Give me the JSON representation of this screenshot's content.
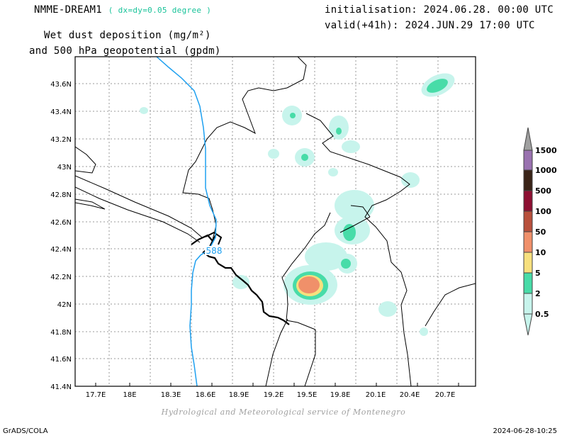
{
  "header": {
    "model": "NMME-DREAM1",
    "resolution": "( dx=dy=0.05 degree )",
    "initialisation": "initialisation: 2024.06.28. 00:00 UTC",
    "valid": "valid(+41h): 2024.JUN.29 17:00 UTC",
    "title_line1": "Wet dust deposition (mg/m²)",
    "title_line2": "and 500 hPa geopotential (gpdm)"
  },
  "map": {
    "lon_labels": [
      "17.7E",
      "18E",
      "18.3E",
      "18.6E",
      "18.9E",
      "19.2E",
      "19.5E",
      "19.8E",
      "20.1E",
      "20.4E",
      "20.7E"
    ],
    "lat_labels": [
      "43.6N",
      "43.4N",
      "43.2N",
      "43N",
      "42.8N",
      "42.6N",
      "42.4N",
      "42.2N",
      "42N",
      "41.8N",
      "41.6N",
      "41.4N"
    ],
    "contour_label": "588",
    "contour_color": "#1ea0f0"
  },
  "legend": {
    "levels": [
      {
        "label": "1500",
        "color": "#a0a0a0"
      },
      {
        "label": "1000",
        "color": "#9a72b0"
      },
      {
        "label": "500",
        "color": "#3a2418"
      },
      {
        "label": "100",
        "color": "#8e0f32"
      },
      {
        "label": "50",
        "color": "#b8503c"
      },
      {
        "label": "10",
        "color": "#f0906a"
      },
      {
        "label": "5",
        "color": "#f7e07e"
      },
      {
        "label": "2",
        "color": "#48dca8"
      },
      {
        "label": "0.5",
        "color": "#c7f4ec"
      }
    ]
  },
  "footer": {
    "credit": "Hydrological and Meteorological service of Montenegro",
    "grads": "GrADS/COLA",
    "timestamp": "2024-06-28-10:25"
  }
}
